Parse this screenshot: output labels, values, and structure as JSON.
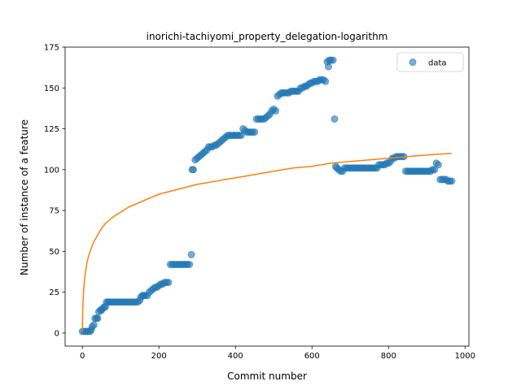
{
  "chart_data": {
    "type": "scatter",
    "title": "inorichi-tachiyomi_property_delegation-logarithm",
    "xlabel": "Commit number",
    "ylabel": "Number of instance of a feature",
    "xlim": [
      -45,
      1010
    ],
    "ylim": [
      -8,
      175
    ],
    "xticks": [
      0,
      200,
      400,
      600,
      800,
      1000
    ],
    "yticks": [
      0,
      25,
      50,
      75,
      100,
      125,
      150,
      175
    ],
    "grid": false,
    "legend_position": "top-right",
    "series": [
      {
        "name": "data",
        "kind": "scatter",
        "color": "#1f77b4",
        "points": [
          [
            0,
            1
          ],
          [
            5,
            1
          ],
          [
            10,
            1
          ],
          [
            15,
            1
          ],
          [
            20,
            1
          ],
          [
            23,
            2
          ],
          [
            26,
            4
          ],
          [
            30,
            5
          ],
          [
            33,
            9
          ],
          [
            37,
            9
          ],
          [
            40,
            9
          ],
          [
            43,
            13
          ],
          [
            47,
            14
          ],
          [
            50,
            14
          ],
          [
            53,
            15
          ],
          [
            57,
            16
          ],
          [
            60,
            16
          ],
          [
            63,
            19
          ],
          [
            67,
            19
          ],
          [
            70,
            19
          ],
          [
            75,
            19
          ],
          [
            80,
            19
          ],
          [
            85,
            19
          ],
          [
            90,
            19
          ],
          [
            95,
            19
          ],
          [
            100,
            19
          ],
          [
            105,
            19
          ],
          [
            110,
            19
          ],
          [
            115,
            19
          ],
          [
            120,
            19
          ],
          [
            125,
            19
          ],
          [
            130,
            19
          ],
          [
            135,
            19
          ],
          [
            140,
            19
          ],
          [
            145,
            19
          ],
          [
            150,
            20
          ],
          [
            153,
            22
          ],
          [
            157,
            23
          ],
          [
            160,
            23
          ],
          [
            165,
            23
          ],
          [
            170,
            23
          ],
          [
            175,
            25
          ],
          [
            180,
            26
          ],
          [
            185,
            27
          ],
          [
            190,
            28
          ],
          [
            195,
            28
          ],
          [
            200,
            29
          ],
          [
            205,
            30
          ],
          [
            210,
            30
          ],
          [
            215,
            31
          ],
          [
            220,
            31
          ],
          [
            225,
            31
          ],
          [
            230,
            42
          ],
          [
            235,
            42
          ],
          [
            240,
            42
          ],
          [
            245,
            42
          ],
          [
            250,
            42
          ],
          [
            255,
            42
          ],
          [
            260,
            42
          ],
          [
            265,
            42
          ],
          [
            270,
            42
          ],
          [
            275,
            42
          ],
          [
            280,
            42
          ],
          [
            285,
            48
          ],
          [
            287,
            100
          ],
          [
            290,
            100
          ],
          [
            295,
            106
          ],
          [
            300,
            107
          ],
          [
            305,
            108
          ],
          [
            310,
            109
          ],
          [
            315,
            110
          ],
          [
            320,
            111
          ],
          [
            325,
            112
          ],
          [
            330,
            114
          ],
          [
            335,
            114
          ],
          [
            340,
            114
          ],
          [
            345,
            115
          ],
          [
            350,
            115
          ],
          [
            355,
            116
          ],
          [
            360,
            117
          ],
          [
            365,
            118
          ],
          [
            370,
            119
          ],
          [
            375,
            120
          ],
          [
            380,
            121
          ],
          [
            385,
            121
          ],
          [
            390,
            121
          ],
          [
            395,
            121
          ],
          [
            400,
            121
          ],
          [
            405,
            121
          ],
          [
            410,
            121
          ],
          [
            415,
            121
          ],
          [
            420,
            125
          ],
          [
            425,
            124
          ],
          [
            430,
            123
          ],
          [
            435,
            123
          ],
          [
            440,
            123
          ],
          [
            445,
            123
          ],
          [
            450,
            123
          ],
          [
            455,
            131
          ],
          [
            460,
            131
          ],
          [
            465,
            131
          ],
          [
            470,
            131
          ],
          [
            475,
            131
          ],
          [
            480,
            132
          ],
          [
            485,
            133
          ],
          [
            490,
            134
          ],
          [
            495,
            136
          ],
          [
            500,
            137
          ],
          [
            505,
            136
          ],
          [
            510,
            145
          ],
          [
            515,
            146
          ],
          [
            520,
            147
          ],
          [
            525,
            147
          ],
          [
            530,
            147
          ],
          [
            535,
            147
          ],
          [
            540,
            147
          ],
          [
            545,
            148
          ],
          [
            550,
            148
          ],
          [
            555,
            148
          ],
          [
            560,
            148
          ],
          [
            565,
            148
          ],
          [
            570,
            150
          ],
          [
            575,
            150
          ],
          [
            580,
            151
          ],
          [
            585,
            151
          ],
          [
            590,
            152
          ],
          [
            595,
            153
          ],
          [
            600,
            153
          ],
          [
            605,
            154
          ],
          [
            610,
            154
          ],
          [
            615,
            154
          ],
          [
            620,
            155
          ],
          [
            625,
            155
          ],
          [
            630,
            155
          ],
          [
            635,
            154
          ],
          [
            640,
            166
          ],
          [
            643,
            163
          ],
          [
            645,
            167
          ],
          [
            650,
            167
          ],
          [
            655,
            167
          ],
          [
            659,
            131
          ],
          [
            662,
            102
          ],
          [
            665,
            101
          ],
          [
            670,
            100
          ],
          [
            675,
            99
          ],
          [
            680,
            99
          ],
          [
            685,
            101
          ],
          [
            690,
            101
          ],
          [
            695,
            101
          ],
          [
            700,
            101
          ],
          [
            705,
            101
          ],
          [
            710,
            101
          ],
          [
            715,
            101
          ],
          [
            720,
            101
          ],
          [
            725,
            101
          ],
          [
            730,
            101
          ],
          [
            735,
            101
          ],
          [
            740,
            101
          ],
          [
            745,
            101
          ],
          [
            750,
            101
          ],
          [
            755,
            101
          ],
          [
            760,
            101
          ],
          [
            765,
            101
          ],
          [
            770,
            101
          ],
          [
            775,
            103
          ],
          [
            780,
            103
          ],
          [
            785,
            103
          ],
          [
            790,
            103
          ],
          [
            795,
            104
          ],
          [
            800,
            104
          ],
          [
            805,
            105
          ],
          [
            810,
            107
          ],
          [
            815,
            107
          ],
          [
            820,
            108
          ],
          [
            825,
            108
          ],
          [
            830,
            108
          ],
          [
            835,
            108
          ],
          [
            840,
            108
          ],
          [
            845,
            99
          ],
          [
            850,
            99
          ],
          [
            855,
            99
          ],
          [
            860,
            99
          ],
          [
            865,
            99
          ],
          [
            870,
            99
          ],
          [
            875,
            99
          ],
          [
            880,
            99
          ],
          [
            885,
            99
          ],
          [
            890,
            99
          ],
          [
            895,
            99
          ],
          [
            900,
            99
          ],
          [
            905,
            99
          ],
          [
            910,
            99
          ],
          [
            915,
            100
          ],
          [
            920,
            100
          ],
          [
            925,
            104
          ],
          [
            930,
            103
          ],
          [
            935,
            94
          ],
          [
            940,
            94
          ],
          [
            945,
            94
          ],
          [
            950,
            94
          ],
          [
            955,
            93
          ],
          [
            960,
            93
          ],
          [
            965,
            93
          ]
        ]
      },
      {
        "kind": "line",
        "color": "#ff7f0e",
        "points": [
          [
            0,
            1
          ],
          [
            1,
            13
          ],
          [
            2,
            20
          ],
          [
            3,
            25
          ],
          [
            5,
            31
          ],
          [
            8,
            37
          ],
          [
            12,
            43
          ],
          [
            16,
            47
          ],
          [
            20,
            50
          ],
          [
            30,
            56
          ],
          [
            40,
            60
          ],
          [
            50,
            64
          ],
          [
            60,
            67
          ],
          [
            80,
            71
          ],
          [
            100,
            74
          ],
          [
            120,
            77
          ],
          [
            150,
            80
          ],
          [
            200,
            85
          ],
          [
            250,
            88
          ],
          [
            300,
            91
          ],
          [
            350,
            93
          ],
          [
            400,
            95
          ],
          [
            450,
            97
          ],
          [
            500,
            99
          ],
          [
            550,
            101
          ],
          [
            600,
            102
          ],
          [
            650,
            104
          ],
          [
            700,
            105
          ],
          [
            750,
            106
          ],
          [
            800,
            107
          ],
          [
            850,
            108
          ],
          [
            900,
            109
          ],
          [
            965,
            110
          ]
        ]
      }
    ]
  }
}
